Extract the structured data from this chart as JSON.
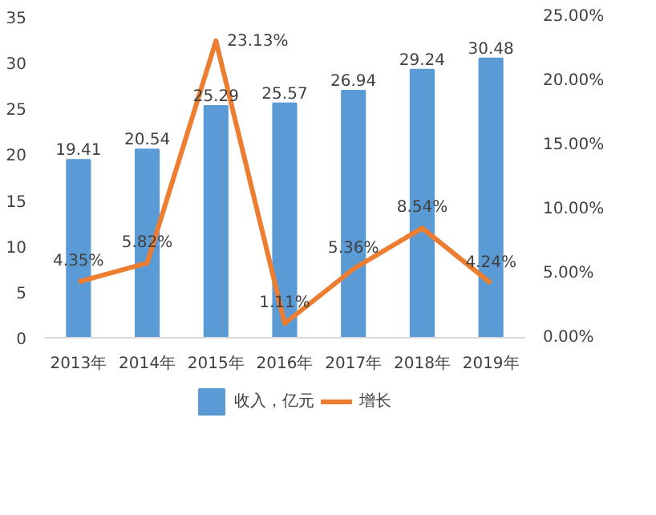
{
  "chart_data": {
    "type": "bar",
    "categories": [
      "2013年",
      "2014年",
      "2015年",
      "2016年",
      "2017年",
      "2018年",
      "2019年"
    ],
    "series": [
      {
        "name": "收入，亿元",
        "type": "bar",
        "color": "#5b9bd5",
        "values": [
          19.41,
          20.54,
          25.29,
          25.57,
          26.94,
          29.24,
          30.48
        ],
        "value_labels": [
          "19.41",
          "20.54",
          "25.29",
          "25.57",
          "26.94",
          "29.24",
          "30.48"
        ]
      },
      {
        "name": "增长",
        "type": "line",
        "axis": "y2",
        "color": "#ed7d31",
        "values": [
          4.35,
          5.82,
          23.13,
          1.11,
          5.36,
          8.54,
          4.24
        ],
        "value_labels": [
          "4.35%",
          "5.82%",
          "23.13%",
          "1.11%",
          "5.36%",
          "8.54%",
          "4.24%"
        ]
      }
    ],
    "ylim": [
      0,
      35
    ],
    "yticks": [
      0,
      5,
      10,
      15,
      20,
      25,
      30,
      35
    ],
    "y2lim": [
      0,
      25
    ],
    "y2ticks": [
      {
        "value": 0,
        "label": "0.00%"
      },
      {
        "value": 5,
        "label": "5.00%"
      },
      {
        "value": 10,
        "label": "10.00%"
      },
      {
        "value": 15,
        "label": "15.00%"
      },
      {
        "value": 20,
        "label": "20.00%"
      },
      {
        "value": 25,
        "label": "25.00%"
      }
    ],
    "legend": "bottom",
    "marker": "none",
    "line_style": "solid"
  }
}
